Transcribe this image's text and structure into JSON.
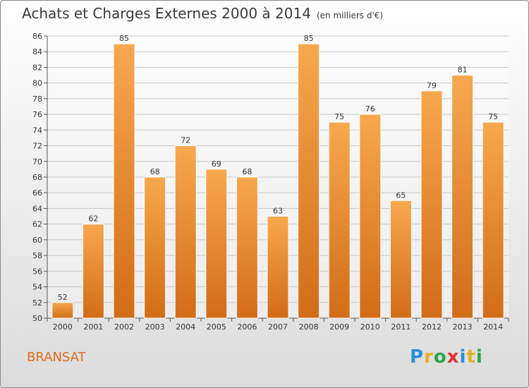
{
  "header": {
    "title": "Achats et Charges Externes 2000 à 2014",
    "subtitle": "(en milliers d'€)"
  },
  "footer": {
    "location": "BRANSAT",
    "logo": {
      "letters": [
        "P",
        "r",
        "o",
        "x",
        "i",
        "t",
        "i"
      ],
      "colors": [
        "#2a8fd6",
        "#e8b020",
        "#2fa34a",
        "#e03030",
        "#2a8fd6",
        "#e8b020",
        "#2fa34a"
      ]
    }
  },
  "colors": {
    "bar_light": "#f7a84e",
    "bar_dark": "#d26c18",
    "accent": "#e06a1a",
    "grid": "#c8c8c8"
  },
  "chart_data": {
    "type": "bar",
    "title": "Achats et Charges Externes 2000 à 2014",
    "subtitle": "(en milliers d'€)",
    "categories": [
      "2000",
      "2001",
      "2002",
      "2003",
      "2004",
      "2005",
      "2006",
      "2007",
      "2008",
      "2009",
      "2010",
      "2011",
      "2012",
      "2013",
      "2014"
    ],
    "values": [
      52,
      62,
      85,
      68,
      72,
      69,
      68,
      63,
      85,
      75,
      76,
      65,
      79,
      81,
      75
    ],
    "ylim": [
      50,
      86
    ],
    "yticks": [
      50,
      52,
      54,
      56,
      58,
      60,
      62,
      64,
      66,
      68,
      70,
      72,
      74,
      76,
      78,
      80,
      82,
      84,
      86
    ],
    "grid": true
  }
}
